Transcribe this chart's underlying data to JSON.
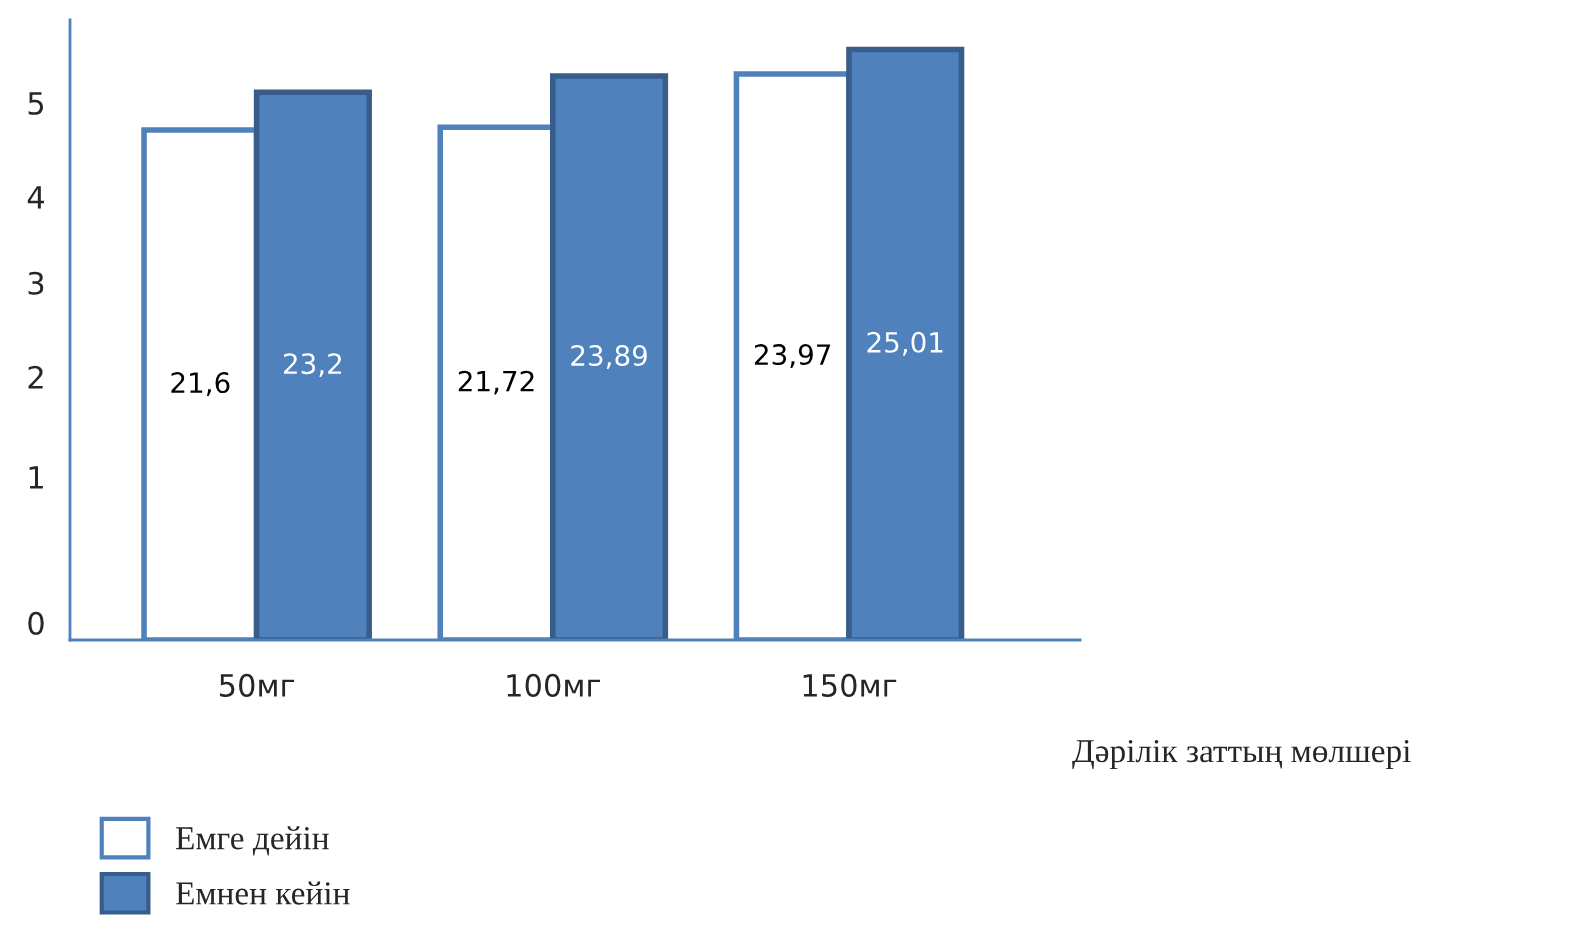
{
  "chart_data": {
    "type": "bar",
    "xlabel": "Дәрілік заттың мөлшері",
    "categories": [
      "50мг",
      "100мг",
      "150мг"
    ],
    "series": [
      {
        "name": "Емге дейін",
        "color": "#ffffff",
        "values": [
          21.6,
          21.72,
          23.97
        ],
        "value_labels": [
          "21,6",
          "21,72",
          "23,97"
        ]
      },
      {
        "name": "Емнен кейін",
        "color": "#4f81bd",
        "values": [
          23.2,
          23.89,
          25.01
        ],
        "value_labels": [
          "23,2",
          "23,89",
          "25,01"
        ]
      }
    ],
    "annotations": [
      "0",
      "1",
      "2",
      "3",
      "4",
      "5"
    ],
    "grid": false,
    "legend": "bottom left"
  }
}
